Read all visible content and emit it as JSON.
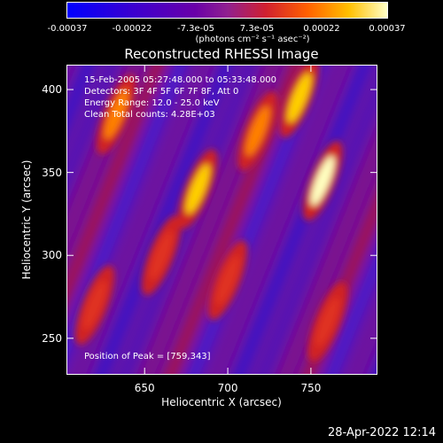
{
  "colorbar": {
    "ticks": [
      "-0.00037",
      "-0.00022",
      "-7.3e-05",
      "7.3e-05",
      "0.00022",
      "0.00037"
    ],
    "unit_label": "(photons cm⁻² s⁻¹ asec⁻²)",
    "range": [
      -0.00037,
      0.00037
    ]
  },
  "chart_data": {
    "type": "heatmap",
    "title": "Reconstructed RHESSI Image",
    "xlabel": "Heliocentric X (arcsec)",
    "ylabel": "Heliocentric Y (arcsec)",
    "xlim": [
      603,
      790
    ],
    "ylim": [
      228,
      415
    ],
    "x_ticks": [
      650,
      700,
      750
    ],
    "y_ticks": [
      250,
      300,
      350,
      400
    ],
    "peak": [
      759,
      343
    ],
    "annotations": {
      "time_range": "15-Feb-2005 05:27:48.000 to 05:33:48.000",
      "detectors": "Detectors: 3F 4F 5F 6F 7F 8F, Att 0",
      "energy": "Energy Range: 12.0 - 25.0 keV",
      "method": "Clean   Total counts: 4.28E+03",
      "peak_label": "Position of Peak = [759,343]"
    },
    "bright_sources": [
      {
        "x": 633,
        "y": 385,
        "level": 0.85
      },
      {
        "x": 682,
        "y": 340,
        "level": 0.95
      },
      {
        "x": 757,
        "y": 345,
        "level": 1.0
      },
      {
        "x": 743,
        "y": 395,
        "level": 0.9
      },
      {
        "x": 718,
        "y": 375,
        "level": 0.75
      },
      {
        "x": 660,
        "y": 300,
        "level": 0.7
      },
      {
        "x": 700,
        "y": 285,
        "level": 0.65
      },
      {
        "x": 760,
        "y": 260,
        "level": 0.6
      },
      {
        "x": 620,
        "y": 270,
        "level": 0.55
      }
    ]
  },
  "footer": {
    "timestamp": "28-Apr-2022 12:14"
  }
}
